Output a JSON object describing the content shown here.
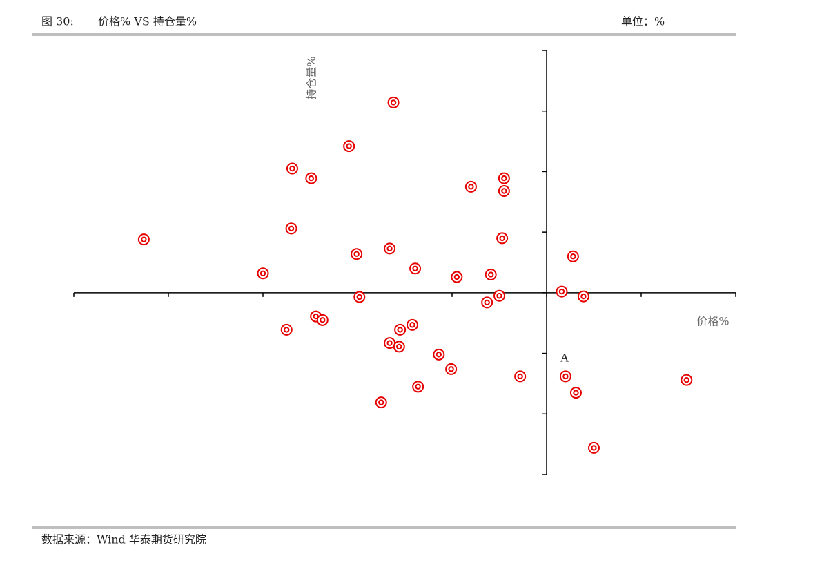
{
  "chart_data": {
    "type": "scatter",
    "figure_label": "图 30:",
    "title": "价格% VS 持仓量%",
    "unit": "单位：%",
    "source": "数据来源：Wind 华泰期货研究院",
    "x_label": "价格%",
    "y_label": "持仓量%",
    "annotation": "A",
    "color": "#e60000",
    "tick_labels": false,
    "xlim": [
      -5,
      2
    ],
    "xticks": [
      -5,
      -4,
      -3,
      -2,
      -1,
      0,
      1,
      2
    ],
    "ylim": [
      -3,
      4
    ],
    "yticks": [
      -3,
      -2,
      -1,
      0,
      1,
      2,
      3,
      4
    ],
    "x": [
      -1.62,
      -2.09,
      -2.69,
      -2.49,
      -0.8,
      -0.45,
      -0.45,
      -4.26,
      -2.7,
      -0.47,
      -1.66,
      -2.01,
      -1.39,
      0.28,
      -3.0,
      -0.95,
      -0.59,
      0.16,
      0.39,
      -1.98,
      -0.5,
      -0.63,
      -2.44,
      -2.37,
      -2.75,
      -1.55,
      -1.42,
      -1.66,
      -1.56,
      -1.14,
      -1.01,
      -0.28,
      0.2,
      1.48,
      0.31,
      -1.36,
      -1.75,
      0.5
    ],
    "values": [
      3.14,
      2.42,
      2.05,
      1.89,
      1.75,
      1.89,
      1.68,
      0.88,
      1.06,
      0.9,
      0.73,
      0.64,
      0.4,
      0.6,
      0.32,
      0.26,
      0.3,
      0.02,
      -0.06,
      -0.07,
      -0.05,
      -0.16,
      -0.39,
      -0.45,
      -0.61,
      -0.61,
      -0.53,
      -0.83,
      -0.89,
      -1.02,
      -1.26,
      -1.38,
      -1.38,
      -1.44,
      -1.65,
      -1.55,
      -1.81,
      -2.56
    ]
  }
}
